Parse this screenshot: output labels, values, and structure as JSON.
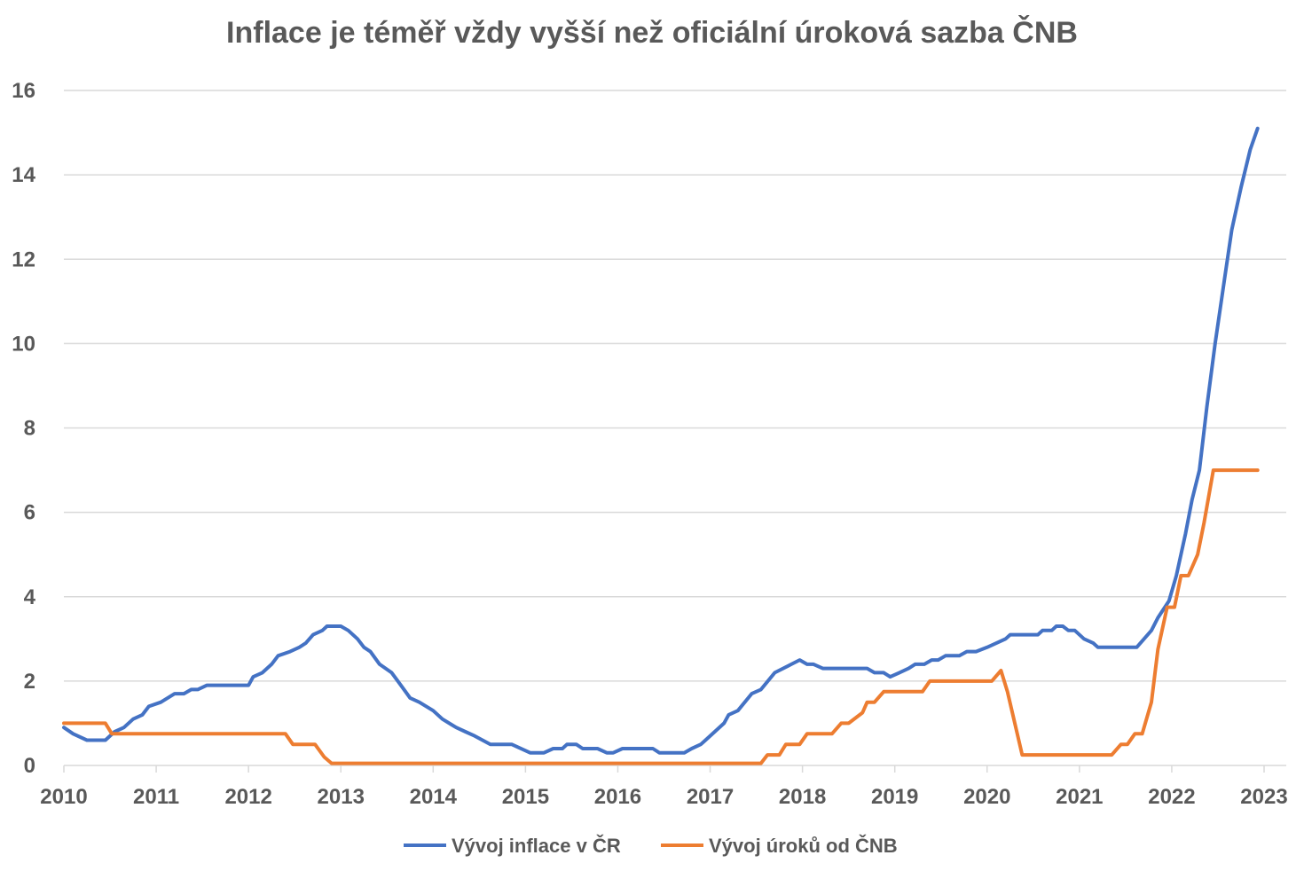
{
  "chart_data": {
    "type": "line",
    "title": "Inflace je téměř vždy vyšší než oficiální úroková sazba ČNB",
    "xlabel": "",
    "ylabel": "",
    "ylim": [
      0,
      16
    ],
    "yticks": [
      0,
      2,
      4,
      6,
      8,
      10,
      12,
      14,
      16
    ],
    "xlim": [
      2010,
      2023
    ],
    "xticks": [
      2010,
      2011,
      2012,
      2013,
      2014,
      2015,
      2016,
      2017,
      2018,
      2019,
      2020,
      2021,
      2022,
      2023
    ],
    "grid": true,
    "legend_position": "bottom",
    "series": [
      {
        "name": "Vývoj inflace v ČR",
        "color": "#4472C4",
        "points": [
          [
            2010.0,
            0.9
          ],
          [
            2010.1,
            0.75
          ],
          [
            2010.25,
            0.6
          ],
          [
            2010.45,
            0.6
          ],
          [
            2010.55,
            0.8
          ],
          [
            2010.65,
            0.9
          ],
          [
            2010.75,
            1.1
          ],
          [
            2010.85,
            1.2
          ],
          [
            2010.92,
            1.4
          ],
          [
            2011.05,
            1.5
          ],
          [
            2011.2,
            1.7
          ],
          [
            2011.3,
            1.7
          ],
          [
            2011.38,
            1.8
          ],
          [
            2011.45,
            1.8
          ],
          [
            2011.55,
            1.9
          ],
          [
            2011.7,
            1.9
          ],
          [
            2011.85,
            1.9
          ],
          [
            2012.0,
            1.9
          ],
          [
            2012.05,
            2.1
          ],
          [
            2012.15,
            2.2
          ],
          [
            2012.25,
            2.4
          ],
          [
            2012.32,
            2.6
          ],
          [
            2012.45,
            2.7
          ],
          [
            2012.55,
            2.8
          ],
          [
            2012.62,
            2.9
          ],
          [
            2012.7,
            3.1
          ],
          [
            2012.8,
            3.2
          ],
          [
            2012.85,
            3.3
          ],
          [
            2012.95,
            3.3
          ],
          [
            2013.0,
            3.3
          ],
          [
            2013.08,
            3.2
          ],
          [
            2013.18,
            3.0
          ],
          [
            2013.25,
            2.8
          ],
          [
            2013.32,
            2.7
          ],
          [
            2013.42,
            2.4
          ],
          [
            2013.55,
            2.2
          ],
          [
            2013.65,
            1.9
          ],
          [
            2013.75,
            1.6
          ],
          [
            2013.85,
            1.5
          ],
          [
            2014.0,
            1.3
          ],
          [
            2014.1,
            1.1
          ],
          [
            2014.25,
            0.9
          ],
          [
            2014.35,
            0.8
          ],
          [
            2014.45,
            0.7
          ],
          [
            2014.62,
            0.5
          ],
          [
            2014.85,
            0.5
          ],
          [
            2015.05,
            0.3
          ],
          [
            2015.2,
            0.3
          ],
          [
            2015.3,
            0.4
          ],
          [
            2015.4,
            0.4
          ],
          [
            2015.45,
            0.5
          ],
          [
            2015.55,
            0.5
          ],
          [
            2015.62,
            0.4
          ],
          [
            2015.78,
            0.4
          ],
          [
            2015.88,
            0.3
          ],
          [
            2015.95,
            0.3
          ],
          [
            2016.05,
            0.4
          ],
          [
            2016.2,
            0.4
          ],
          [
            2016.38,
            0.4
          ],
          [
            2016.45,
            0.3
          ],
          [
            2016.6,
            0.3
          ],
          [
            2016.72,
            0.3
          ],
          [
            2016.8,
            0.4
          ],
          [
            2016.9,
            0.5
          ],
          [
            2016.95,
            0.6
          ],
          [
            2017.05,
            0.8
          ],
          [
            2017.15,
            1.0
          ],
          [
            2017.2,
            1.2
          ],
          [
            2017.3,
            1.3
          ],
          [
            2017.45,
            1.7
          ],
          [
            2017.55,
            1.8
          ],
          [
            2017.7,
            2.2
          ],
          [
            2017.88,
            2.4
          ],
          [
            2017.97,
            2.5
          ],
          [
            2018.05,
            2.4
          ],
          [
            2018.12,
            2.4
          ],
          [
            2018.22,
            2.3
          ],
          [
            2018.4,
            2.3
          ],
          [
            2018.6,
            2.3
          ],
          [
            2018.7,
            2.3
          ],
          [
            2018.78,
            2.2
          ],
          [
            2018.88,
            2.2
          ],
          [
            2018.95,
            2.1
          ],
          [
            2019.05,
            2.2
          ],
          [
            2019.15,
            2.3
          ],
          [
            2019.22,
            2.4
          ],
          [
            2019.32,
            2.4
          ],
          [
            2019.4,
            2.5
          ],
          [
            2019.47,
            2.5
          ],
          [
            2019.55,
            2.6
          ],
          [
            2019.7,
            2.6
          ],
          [
            2019.78,
            2.7
          ],
          [
            2019.88,
            2.7
          ],
          [
            2020.0,
            2.8
          ],
          [
            2020.1,
            2.9
          ],
          [
            2020.2,
            3.0
          ],
          [
            2020.25,
            3.1
          ],
          [
            2020.4,
            3.1
          ],
          [
            2020.55,
            3.1
          ],
          [
            2020.6,
            3.2
          ],
          [
            2020.7,
            3.2
          ],
          [
            2020.75,
            3.3
          ],
          [
            2020.82,
            3.3
          ],
          [
            2020.88,
            3.2
          ],
          [
            2020.95,
            3.2
          ],
          [
            2021.05,
            3.0
          ],
          [
            2021.15,
            2.9
          ],
          [
            2021.2,
            2.8
          ],
          [
            2021.35,
            2.8
          ],
          [
            2021.5,
            2.8
          ],
          [
            2021.62,
            2.8
          ],
          [
            2021.7,
            3.0
          ],
          [
            2021.78,
            3.2
          ],
          [
            2021.85,
            3.5
          ],
          [
            2021.97,
            3.9
          ],
          [
            2022.05,
            4.5
          ],
          [
            2022.15,
            5.5
          ],
          [
            2022.22,
            6.3
          ],
          [
            2022.3,
            7.0
          ],
          [
            2022.38,
            8.5
          ],
          [
            2022.47,
            10.0
          ],
          [
            2022.57,
            11.5
          ],
          [
            2022.65,
            12.7
          ],
          [
            2022.75,
            13.7
          ],
          [
            2022.85,
            14.6
          ],
          [
            2022.93,
            15.1
          ]
        ]
      },
      {
        "name": "Vývoj úroků od ČNB",
        "color": "#ED7D31",
        "points": [
          [
            2010.0,
            1.0
          ],
          [
            2010.45,
            1.0
          ],
          [
            2010.52,
            0.75
          ],
          [
            2011.0,
            0.75
          ],
          [
            2012.0,
            0.75
          ],
          [
            2012.4,
            0.75
          ],
          [
            2012.48,
            0.5
          ],
          [
            2012.72,
            0.5
          ],
          [
            2012.82,
            0.2
          ],
          [
            2012.9,
            0.05
          ],
          [
            2013.0,
            0.05
          ],
          [
            2014.0,
            0.05
          ],
          [
            2015.0,
            0.05
          ],
          [
            2016.0,
            0.05
          ],
          [
            2017.0,
            0.05
          ],
          [
            2017.55,
            0.05
          ],
          [
            2017.62,
            0.25
          ],
          [
            2017.75,
            0.25
          ],
          [
            2017.82,
            0.5
          ],
          [
            2017.97,
            0.5
          ],
          [
            2018.05,
            0.75
          ],
          [
            2018.32,
            0.75
          ],
          [
            2018.42,
            1.0
          ],
          [
            2018.5,
            1.0
          ],
          [
            2018.65,
            1.25
          ],
          [
            2018.7,
            1.5
          ],
          [
            2018.78,
            1.5
          ],
          [
            2018.88,
            1.75
          ],
          [
            2019.0,
            1.75
          ],
          [
            2019.3,
            1.75
          ],
          [
            2019.38,
            2.0
          ],
          [
            2019.7,
            2.0
          ],
          [
            2020.05,
            2.0
          ],
          [
            2020.15,
            2.25
          ],
          [
            2020.22,
            1.75
          ],
          [
            2020.3,
            1.0
          ],
          [
            2020.38,
            0.25
          ],
          [
            2020.6,
            0.25
          ],
          [
            2021.0,
            0.25
          ],
          [
            2021.35,
            0.25
          ],
          [
            2021.45,
            0.5
          ],
          [
            2021.52,
            0.5
          ],
          [
            2021.6,
            0.75
          ],
          [
            2021.68,
            0.75
          ],
          [
            2021.78,
            1.5
          ],
          [
            2021.85,
            2.75
          ],
          [
            2021.95,
            3.75
          ],
          [
            2022.03,
            3.75
          ],
          [
            2022.1,
            4.5
          ],
          [
            2022.18,
            4.5
          ],
          [
            2022.28,
            5.0
          ],
          [
            2022.35,
            5.75
          ],
          [
            2022.45,
            7.0
          ],
          [
            2022.6,
            7.0
          ],
          [
            2022.93,
            7.0
          ]
        ]
      }
    ]
  }
}
